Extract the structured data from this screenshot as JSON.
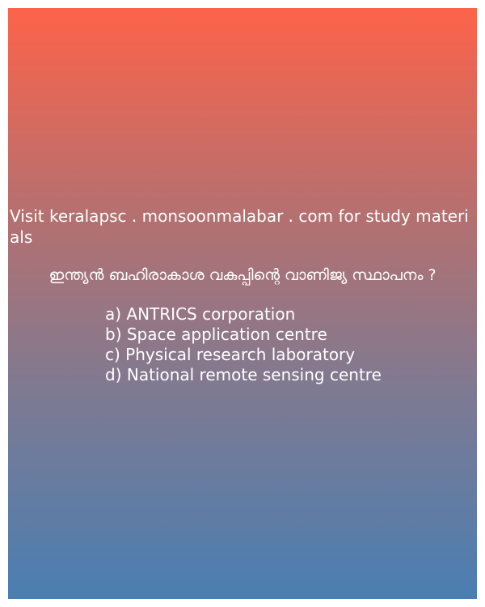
{
  "promo_text": "Visit keralapsc . monsoonmalabar . com for study materials",
  "question": "ഇന്ത്യൻ ബഹിരാകാശ വകുപ്പിന്റെ വാണിജ്യ സ്ഥാപനം ?",
  "options": [
    "a) ANTRICS corporation",
    "b) Space application centre",
    "c) Physical research laboratory",
    "d) National remote sensing centre"
  ],
  "colors": {
    "gradient_top": "#fd634a",
    "gradient_bottom": "#4a7eb2",
    "text": "#ffffff"
  }
}
